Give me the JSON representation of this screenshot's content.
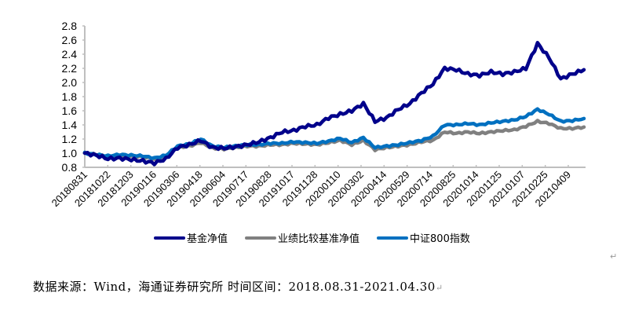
{
  "chart_data": {
    "type": "line",
    "title": "",
    "xlabel": "",
    "ylabel": "",
    "ylim": [
      0.8,
      2.8
    ],
    "yticks": [
      "0.8",
      "1.0",
      "1.2",
      "1.4",
      "1.6",
      "1.8",
      "2.0",
      "2.2",
      "2.4",
      "2.6",
      "2.8"
    ],
    "x_tick_labels": [
      "20180831",
      "20181022",
      "20181203",
      "20190116",
      "20190306",
      "20190418",
      "20190604",
      "20190717",
      "20190828",
      "20191017",
      "20191128",
      "20200110",
      "20200302",
      "20200414",
      "20200529",
      "20200714",
      "20200825",
      "20201014",
      "20201125",
      "20210107",
      "20210225",
      "20210409"
    ],
    "grid": false,
    "legend_position": "bottom",
    "x": [
      "20180831",
      "20180920",
      "20181022",
      "20181112",
      "20181203",
      "20181221",
      "20190116",
      "20190201",
      "20190306",
      "20190325",
      "20190418",
      "20190510",
      "20190604",
      "20190625",
      "20190717",
      "20190805",
      "20190828",
      "20190920",
      "20191017",
      "20191105",
      "20191128",
      "20191218",
      "20200110",
      "20200203",
      "20200302",
      "20200320",
      "20200414",
      "20200506",
      "20200529",
      "20200617",
      "20200714",
      "20200803",
      "20200825",
      "20200915",
      "20201014",
      "20201103",
      "20201125",
      "20201215",
      "20210107",
      "20210126",
      "20210225",
      "20210317",
      "20210409",
      "20210430"
    ],
    "series": [
      {
        "name": "基金净值",
        "color": "#00008B",
        "values": [
          1.0,
          0.97,
          0.92,
          0.93,
          0.91,
          0.89,
          0.86,
          0.92,
          1.08,
          1.12,
          1.18,
          1.08,
          1.07,
          1.09,
          1.12,
          1.16,
          1.22,
          1.3,
          1.32,
          1.38,
          1.4,
          1.5,
          1.55,
          1.6,
          1.7,
          1.45,
          1.5,
          1.62,
          1.7,
          1.85,
          1.98,
          2.2,
          2.18,
          2.12,
          2.1,
          2.15,
          2.12,
          2.15,
          2.2,
          2.55,
          2.35,
          2.05,
          2.12,
          2.18
        ]
      },
      {
        "name": "业绩比较基准净值",
        "color": "#808080",
        "values": [
          1.0,
          0.98,
          0.95,
          0.97,
          0.96,
          0.95,
          0.92,
          0.96,
          1.08,
          1.1,
          1.15,
          1.07,
          1.06,
          1.08,
          1.1,
          1.1,
          1.12,
          1.12,
          1.14,
          1.13,
          1.12,
          1.15,
          1.18,
          1.12,
          1.18,
          1.05,
          1.08,
          1.1,
          1.12,
          1.16,
          1.18,
          1.3,
          1.28,
          1.3,
          1.28,
          1.3,
          1.32,
          1.33,
          1.38,
          1.45,
          1.42,
          1.35,
          1.35,
          1.37
        ]
      },
      {
        "name": "中证800指数",
        "color": "#0070C0",
        "values": [
          1.0,
          0.98,
          0.96,
          0.98,
          0.97,
          0.96,
          0.93,
          0.97,
          1.1,
          1.13,
          1.2,
          1.1,
          1.08,
          1.1,
          1.12,
          1.12,
          1.14,
          1.14,
          1.16,
          1.15,
          1.14,
          1.17,
          1.21,
          1.15,
          1.22,
          1.08,
          1.1,
          1.12,
          1.15,
          1.18,
          1.24,
          1.4,
          1.4,
          1.42,
          1.4,
          1.43,
          1.45,
          1.47,
          1.52,
          1.62,
          1.55,
          1.45,
          1.46,
          1.49
        ]
      }
    ]
  },
  "legend": {
    "items": [
      {
        "label": "基金净值",
        "color": "#00008B"
      },
      {
        "label": "业绩比较基准净值",
        "color": "#808080"
      },
      {
        "label": "中证800指数",
        "color": "#0070C0"
      }
    ]
  },
  "caption": {
    "text": "数据来源：Wind，海通证券研究所 时间区间：2018.08.31-2021.04.30",
    "para_mark": "↵"
  },
  "colors": {
    "axis": "#BFBFBF",
    "text": "#000000"
  }
}
